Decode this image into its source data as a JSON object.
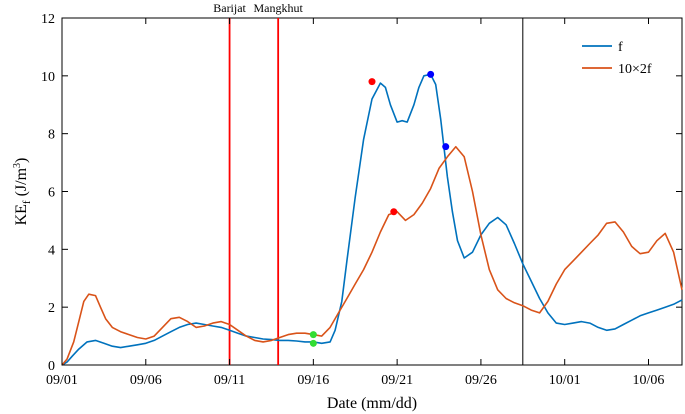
{
  "chart_data": {
    "type": "line",
    "xlabel": "Date (mm/dd)",
    "ylabel": "KE",
    "ylabel_sub": "f",
    "ylabel_units": "(J/m",
    "ylabel_units_sup": "3",
    "ylabel_units_end": ")",
    "xlim": [
      0,
      37
    ],
    "ylim": [
      0,
      12
    ],
    "x_ticks": [
      0,
      5,
      10,
      15,
      20,
      25,
      30,
      35
    ],
    "x_tick_labels": [
      "09/01",
      "09/06",
      "09/11",
      "09/16",
      "09/21",
      "09/26",
      "10/01",
      "10/06"
    ],
    "y_ticks": [
      0,
      2,
      4,
      6,
      8,
      10,
      12
    ],
    "y_tick_labels": [
      "0",
      "2",
      "4",
      "6",
      "8",
      "10",
      "12"
    ],
    "grid": false,
    "legend_position": "top-right",
    "series": [
      {
        "name": "f",
        "color": "#0072BD",
        "x": [
          0,
          0.3,
          0.6,
          1,
          1.5,
          2,
          2.5,
          3,
          3.5,
          4,
          4.5,
          5,
          5.5,
          6,
          6.5,
          7,
          7.5,
          8,
          8.5,
          9,
          9.5,
          10,
          10.5,
          11,
          11.5,
          12,
          12.5,
          13,
          13.5,
          14,
          14.5,
          15,
          15.5,
          16,
          16.3,
          16.7,
          17,
          17.5,
          18,
          18.5,
          19,
          19.3,
          19.6,
          20,
          20.3,
          20.6,
          21,
          21.3,
          21.6,
          22,
          22.3,
          22.6,
          23,
          23.3,
          23.6,
          24,
          24.5,
          25,
          25.5,
          26,
          26.5,
          27,
          27.5,
          28,
          28.5,
          29,
          29.5,
          30,
          30.5,
          31,
          31.5,
          32,
          32.5,
          33,
          33.5,
          34,
          34.5,
          35,
          35.5,
          36,
          36.5,
          37
        ],
        "y": [
          0,
          0.1,
          0.3,
          0.55,
          0.8,
          0.85,
          0.75,
          0.65,
          0.6,
          0.65,
          0.7,
          0.75,
          0.85,
          1.0,
          1.15,
          1.3,
          1.4,
          1.45,
          1.4,
          1.35,
          1.3,
          1.2,
          1.1,
          1.0,
          0.95,
          0.9,
          0.88,
          0.85,
          0.85,
          0.83,
          0.8,
          0.8,
          0.75,
          0.8,
          1.2,
          2.2,
          3.6,
          5.8,
          7.8,
          9.2,
          9.75,
          9.6,
          9.0,
          8.4,
          8.45,
          8.4,
          9.0,
          9.6,
          10.0,
          10.05,
          9.7,
          8.5,
          6.5,
          5.3,
          4.3,
          3.7,
          3.9,
          4.5,
          4.9,
          5.1,
          4.85,
          4.2,
          3.5,
          2.9,
          2.3,
          1.8,
          1.45,
          1.4,
          1.45,
          1.5,
          1.45,
          1.3,
          1.2,
          1.25,
          1.4,
          1.55,
          1.7,
          1.8,
          1.9,
          2.0,
          2.1,
          2.25
        ]
      },
      {
        "name": "10×2f",
        "color": "#D95319",
        "x": [
          0,
          0.3,
          0.7,
          1,
          1.3,
          1.6,
          2,
          2.3,
          2.6,
          3,
          3.5,
          4,
          4.5,
          5,
          5.5,
          6,
          6.5,
          7,
          7.5,
          8,
          8.5,
          9,
          9.5,
          10,
          10.5,
          11,
          11.5,
          12,
          12.5,
          13,
          13.5,
          14,
          14.5,
          15,
          15.5,
          16,
          16.5,
          17,
          17.5,
          18,
          18.5,
          19,
          19.5,
          20,
          20.5,
          21,
          21.5,
          22,
          22.5,
          23,
          23.5,
          24,
          24.5,
          25,
          25.5,
          26,
          26.5,
          27,
          27.5,
          28,
          28.5,
          29,
          29.5,
          30,
          30.5,
          31,
          31.5,
          32,
          32.5,
          33,
          33.5,
          34,
          34.5,
          35,
          35.5,
          36,
          36.5,
          37
        ],
        "y": [
          0,
          0.2,
          0.8,
          1.5,
          2.2,
          2.45,
          2.4,
          2.0,
          1.6,
          1.3,
          1.15,
          1.05,
          0.95,
          0.9,
          1.0,
          1.3,
          1.6,
          1.65,
          1.5,
          1.3,
          1.35,
          1.45,
          1.5,
          1.4,
          1.2,
          1.0,
          0.85,
          0.8,
          0.85,
          0.95,
          1.05,
          1.1,
          1.1,
          1.05,
          1.0,
          1.3,
          1.8,
          2.3,
          2.8,
          3.3,
          3.9,
          4.6,
          5.2,
          5.3,
          5.0,
          5.2,
          5.6,
          6.1,
          6.8,
          7.2,
          7.55,
          7.2,
          6.0,
          4.5,
          3.3,
          2.6,
          2.3,
          2.15,
          2.05,
          1.9,
          1.8,
          2.2,
          2.8,
          3.3,
          3.6,
          3.9,
          4.2,
          4.5,
          4.9,
          4.95,
          4.6,
          4.1,
          3.85,
          3.9,
          4.3,
          4.55,
          3.9,
          2.6
        ]
      }
    ],
    "markers": [
      {
        "x": 18.5,
        "y": 9.8,
        "color": "#FF0000"
      },
      {
        "x": 22.0,
        "y": 10.05,
        "color": "#0000FF"
      },
      {
        "x": 19.8,
        "y": 5.3,
        "color": "#FF0000"
      },
      {
        "x": 22.9,
        "y": 7.55,
        "color": "#0000FF"
      },
      {
        "x": 15.0,
        "y": 1.05,
        "color": "#33DD33"
      },
      {
        "x": 15.0,
        "y": 0.75,
        "color": "#33DD33"
      }
    ],
    "vlines": [
      {
        "x": 10.0,
        "color": "#FF0000",
        "label": "Barijat"
      },
      {
        "x": 12.9,
        "color": "#FF0000",
        "label": "Mangkhut"
      },
      {
        "x": 27.5,
        "color": "#000000",
        "label": ""
      }
    ]
  }
}
